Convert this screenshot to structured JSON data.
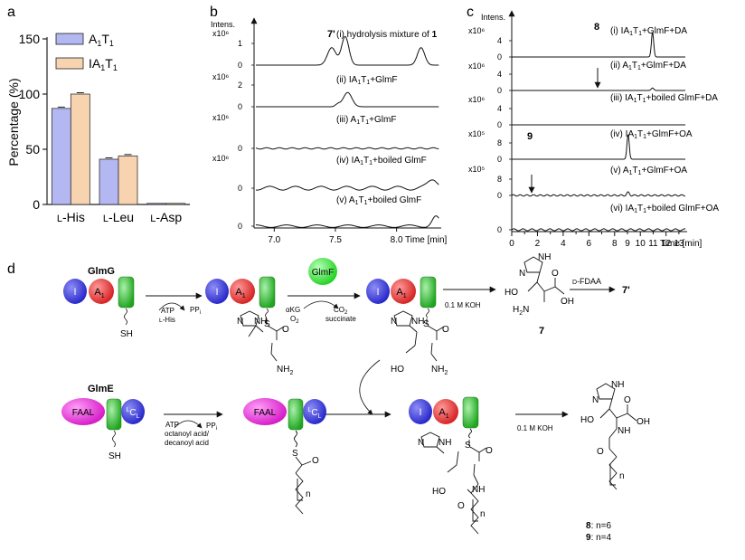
{
  "panel_a": {
    "letter": "a",
    "ylabel": "Percentage (%)",
    "yticks": [
      "0",
      "50",
      "100",
      "150"
    ],
    "legend": [
      {
        "name": "A",
        "sub": "1",
        "name2": "T",
        "sub2": "1",
        "color": "#b3b7f2"
      },
      {
        "name": "IA",
        "sub": "1",
        "name2": "T",
        "sub2": "1",
        "color": "#f7d3b0"
      }
    ]
  },
  "chart_data": {
    "type": "bar",
    "categories": [
      "L-His",
      "L-Leu",
      "L-Asp"
    ],
    "series": [
      {
        "name": "A1T1",
        "values": [
          87,
          41,
          1
        ]
      },
      {
        "name": "IA1T1",
        "values": [
          100,
          44,
          1
        ]
      }
    ],
    "ylabel": "Percentage (%)",
    "ylim": [
      0,
      150
    ],
    "yticks": [
      0,
      50,
      100,
      150
    ],
    "legend_position": "top-right"
  },
  "panel_a_cats": [
    {
      "sc": "L",
      "rest": "-His"
    },
    {
      "sc": "L",
      "rest": "-Leu"
    },
    {
      "sc": "L",
      "rest": "-Asp"
    }
  ],
  "panel_b": {
    "letter": "b",
    "intens": "Intens.",
    "x_ticks": [
      "7.0",
      "7.5",
      "8.0"
    ],
    "x_unit": "Time [min]",
    "scales": [
      "x10⁶",
      "x10⁶",
      "x10⁶",
      "x10⁶"
    ],
    "y_ticks": [
      [
        "0",
        "1"
      ],
      [
        "0",
        "2"
      ],
      [
        "0"
      ],
      [
        "0"
      ],
      [
        "0"
      ]
    ],
    "peak_label": "7'",
    "traces": [
      {
        "parts": [
          {
            "t": "(i) hydrolysis mixture of "
          },
          {
            "t": "1",
            "b": true
          }
        ]
      },
      {
        "parts": [
          {
            "t": "(ii) IA"
          },
          {
            "t": "1",
            "sub": true
          },
          {
            "t": "T"
          },
          {
            "t": "1",
            "sub": true
          },
          {
            "t": "+GlmF"
          }
        ]
      },
      {
        "parts": [
          {
            "t": "(iii) A"
          },
          {
            "t": "1",
            "sub": true
          },
          {
            "t": "T"
          },
          {
            "t": "1",
            "sub": true
          },
          {
            "t": "+GlmF"
          }
        ]
      },
      {
        "parts": [
          {
            "t": "(iv) IA"
          },
          {
            "t": "1",
            "sub": true
          },
          {
            "t": "T"
          },
          {
            "t": "1",
            "sub": true
          },
          {
            "t": "+boiled GlmF"
          }
        ]
      },
      {
        "parts": [
          {
            "t": "(v) A"
          },
          {
            "t": "1",
            "sub": true
          },
          {
            "t": "T"
          },
          {
            "t": "1",
            "sub": true
          },
          {
            "t": "+boiled GlmF"
          }
        ]
      }
    ]
  },
  "panel_c": {
    "letter": "c",
    "intens": "Intens.",
    "x_ticks": [
      "0",
      "1",
      "2",
      "3",
      "4",
      "5",
      "6",
      "7",
      "8",
      "9",
      "10",
      "11",
      "12",
      "13"
    ],
    "x_unit": "Time [min]",
    "scales": [
      "x10⁶",
      "x10⁶",
      "x10⁶",
      "x10⁵",
      "x10⁵"
    ],
    "y_ticks": [
      [
        "0",
        "4"
      ],
      [
        "0",
        "4"
      ],
      [
        "0",
        "4"
      ],
      [
        "0",
        "8"
      ],
      [
        "0",
        "8"
      ],
      [
        "0"
      ]
    ],
    "peak8": "8",
    "peak9": "9",
    "traces": [
      {
        "parts": [
          {
            "t": "(i) IA"
          },
          {
            "t": "1",
            "sub": true
          },
          {
            "t": "T"
          },
          {
            "t": "1",
            "sub": true
          },
          {
            "t": "+GlmF+DA"
          }
        ]
      },
      {
        "parts": [
          {
            "t": "(ii) A"
          },
          {
            "t": "1",
            "sub": true
          },
          {
            "t": "T"
          },
          {
            "t": "1",
            "sub": true
          },
          {
            "t": "+GlmF+DA"
          }
        ]
      },
      {
        "parts": [
          {
            "t": "(iii) IA"
          },
          {
            "t": "1",
            "sub": true
          },
          {
            "t": "T"
          },
          {
            "t": "1",
            "sub": true
          },
          {
            "t": "+boiled GlmF+DA"
          }
        ]
      },
      {
        "parts": [
          {
            "t": "(iv) IA"
          },
          {
            "t": "1",
            "sub": true
          },
          {
            "t": "T"
          },
          {
            "t": "1",
            "sub": true
          },
          {
            "t": "+GlmF+OA"
          }
        ]
      },
      {
        "parts": [
          {
            "t": "(v) A"
          },
          {
            "t": "1",
            "sub": true
          },
          {
            "t": "T"
          },
          {
            "t": "1",
            "sub": true
          },
          {
            "t": "+GlmF+OA"
          }
        ]
      },
      {
        "parts": [
          {
            "t": "(vi) IA"
          },
          {
            "t": "1",
            "sub": true
          },
          {
            "t": "T"
          },
          {
            "t": "1",
            "sub": true
          },
          {
            "t": "+boiled GlmF+OA"
          }
        ]
      }
    ]
  },
  "panel_d": {
    "letter": "d",
    "glmg": "GlmG",
    "glme": "GlmE",
    "glmf": "GlmF",
    "dom_i": "I",
    "dom_a": "A",
    "dom_a_sub": "1",
    "dom_faal": "FAAL",
    "dom_lcl_sup": "L",
    "dom_lcl": "C",
    "dom_lcl_sub": "L",
    "sh": "SH",
    "s": "S",
    "nh": "NH",
    "n": "N",
    "o": "O",
    "ho": "HO",
    "nh2": "NH",
    "nh2_sub": "2",
    "h2n": "H",
    "h2n_sub": "2",
    "h2n_n": "N",
    "oh": "OH",
    "nsub": "n",
    "atp": "ATP",
    "lhis_sc": "L",
    "lhis_rest": "-His",
    "ppi": "PP",
    "ppi_sub": "i",
    "akg": "αKG",
    "o2": "O",
    "o2_sub": "2",
    "co2": "CO",
    "co2_sub": "2",
    "succinate": "succinate",
    "koh": "0.1 M KOH",
    "dfdaa_sc": "D",
    "dfdaa_rest": "-FDAA",
    "product7p": "7'",
    "compound7": "7",
    "octanoyl": "octanoyl acid/",
    "decanoyl": "decanoyl acid",
    "label8": "8",
    "label8_rest": ": n=6",
    "label9": "9",
    "label9_rest": ": n=4"
  }
}
